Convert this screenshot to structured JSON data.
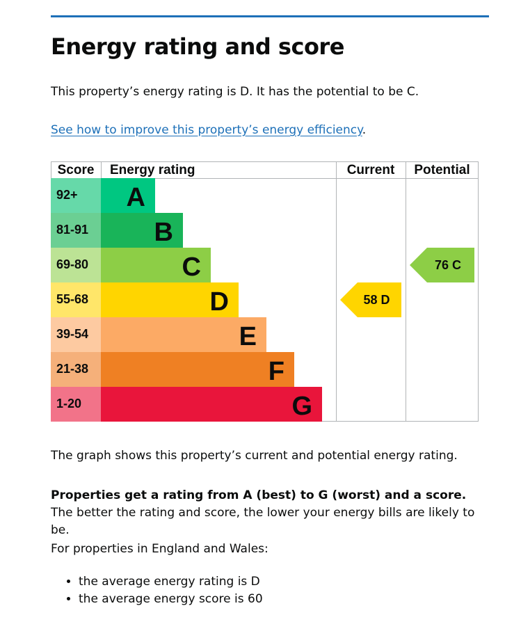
{
  "page": {
    "title": "Energy rating and score",
    "intro": "This property’s energy rating is D. It has the potential to be C.",
    "improve_link": "See how to improve this property’s energy efficiency",
    "improve_link_suffix": ".",
    "graph_note": "The graph shows this property’s current and potential energy rating.",
    "ratings_bold": "Properties get a rating from A (best) to G (worst) and a score.",
    "ratings_rest": " The better the rating and score, the lower your energy bills are likely to be.",
    "region_note": "For properties in England and Wales:",
    "averages": [
      "the average energy rating is D",
      "the average energy score is 60"
    ]
  },
  "chart_data": {
    "type": "bar",
    "headers": {
      "score": "Score",
      "rating": "Energy rating",
      "current": "Current",
      "potential": "Potential"
    },
    "bands": [
      {
        "letter": "A",
        "range": "92+",
        "color": "#00c781",
        "score_bg": "#66d9a9"
      },
      {
        "letter": "B",
        "range": "81-91",
        "color": "#19b459",
        "score_bg": "#6bcf93"
      },
      {
        "letter": "C",
        "range": "69-80",
        "color": "#8dce46",
        "score_bg": "#bce395"
      },
      {
        "letter": "D",
        "range": "55-68",
        "color": "#ffd500",
        "score_bg": "#ffe669"
      },
      {
        "letter": "E",
        "range": "39-54",
        "color": "#fcaa65",
        "score_bg": "#fdcaa1"
      },
      {
        "letter": "F",
        "range": "21-38",
        "color": "#ef8023",
        "score_bg": "#f5b07a"
      },
      {
        "letter": "G",
        "range": "1-20",
        "color": "#e9153b",
        "score_bg": "#f27389"
      }
    ],
    "current": {
      "score": 58,
      "letter": "D",
      "label": "58 D",
      "color": "#ffd500"
    },
    "potential": {
      "score": 76,
      "letter": "C",
      "label": "76 C",
      "color": "#8dce46"
    }
  }
}
